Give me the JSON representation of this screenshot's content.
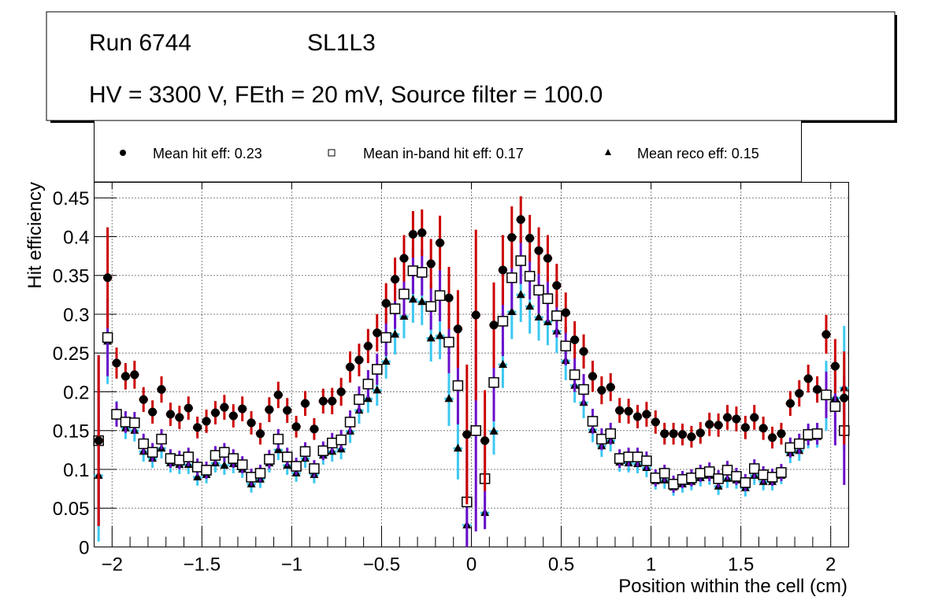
{
  "header": {
    "line1_run": "Run 6744",
    "line1_layer": "SL1L3",
    "line2": "HV = 3300 V, FEth = 20 mV, Source filter = 100.0"
  },
  "legend": {
    "entries": [
      {
        "marker": "filled-circle",
        "label": "Mean hit  eff: 0.23"
      },
      {
        "marker": "open-square",
        "label": "Mean in-band hit eff: 0.17"
      },
      {
        "marker": "filled-triangle",
        "label": "Mean reco eff: 0.15"
      }
    ]
  },
  "chart_data": {
    "type": "scatter",
    "title": "",
    "xlabel": "Position within the cell (cm)",
    "ylabel": "Hit efficiency",
    "xlim": [
      -2.1,
      2.1
    ],
    "ylim": [
      0,
      0.47
    ],
    "grid": true,
    "legend_position": "top",
    "x_ticks": [
      -2,
      -1.5,
      -1,
      -0.5,
      0,
      0.5,
      1,
      1.5,
      2
    ],
    "x_tick_labels": [
      "−2",
      "−1.5",
      "−1",
      "−0.5",
      "0",
      "0.5",
      "1",
      "1.5",
      "2"
    ],
    "y_ticks": [
      0,
      0.05,
      0.1,
      0.15,
      0.2,
      0.25,
      0.3,
      0.35,
      0.4,
      0.45
    ],
    "y_tick_labels": [
      "0",
      "0.05",
      "0.1",
      "0.15",
      "0.2",
      "0.25",
      "0.3",
      "0.35",
      "0.4",
      "0.45"
    ],
    "x": [
      -2.075,
      -2.025,
      -1.975,
      -1.925,
      -1.875,
      -1.825,
      -1.775,
      -1.725,
      -1.675,
      -1.625,
      -1.575,
      -1.525,
      -1.475,
      -1.425,
      -1.375,
      -1.325,
      -1.275,
      -1.225,
      -1.175,
      -1.125,
      -1.075,
      -1.025,
      -0.975,
      -0.925,
      -0.875,
      -0.825,
      -0.775,
      -0.725,
      -0.675,
      -0.625,
      -0.575,
      -0.525,
      -0.475,
      -0.425,
      -0.375,
      -0.325,
      -0.275,
      -0.225,
      -0.175,
      -0.125,
      -0.075,
      -0.025,
      0.025,
      0.075,
      0.125,
      0.175,
      0.225,
      0.275,
      0.325,
      0.375,
      0.425,
      0.475,
      0.525,
      0.575,
      0.625,
      0.675,
      0.725,
      0.775,
      0.825,
      0.875,
      0.925,
      0.975,
      1.025,
      1.075,
      1.125,
      1.175,
      1.225,
      1.275,
      1.325,
      1.375,
      1.425,
      1.475,
      1.525,
      1.575,
      1.625,
      1.675,
      1.725,
      1.775,
      1.825,
      1.875,
      1.925,
      1.975,
      2.025,
      2.075
    ],
    "series": [
      {
        "name": "Mean hit  eff: 0.23",
        "marker": "filled-circle",
        "marker_color": "#000000",
        "error_color": "#cc0000",
        "values": [
          0.137,
          0.347,
          0.237,
          0.22,
          0.222,
          0.19,
          0.174,
          0.203,
          0.171,
          0.167,
          0.179,
          0.154,
          0.162,
          0.173,
          0.18,
          0.169,
          0.178,
          0.16,
          0.146,
          0.177,
          0.196,
          0.176,
          0.155,
          0.185,
          0.152,
          0.188,
          0.188,
          0.2,
          0.232,
          0.241,
          0.259,
          0.276,
          0.314,
          0.345,
          0.372,
          0.403,
          0.405,
          0.365,
          0.392,
          0.321,
          0.281,
          0.145,
          0.299,
          0.137,
          0.286,
          0.357,
          0.399,
          0.422,
          0.398,
          0.382,
          0.372,
          0.337,
          0.302,
          0.267,
          0.252,
          0.22,
          0.202,
          0.206,
          0.176,
          0.175,
          0.168,
          0.171,
          0.161,
          0.146,
          0.146,
          0.145,
          0.142,
          0.147,
          0.158,
          0.157,
          0.167,
          0.165,
          0.154,
          0.167,
          0.153,
          0.141,
          0.146,
          0.185,
          0.198,
          0.217,
          0.203,
          0.274,
          0.233,
          0.192
        ],
        "errors": [
          0.11,
          0.065,
          0.02,
          0.017,
          0.018,
          0.016,
          0.015,
          0.017,
          0.015,
          0.015,
          0.015,
          0.014,
          0.015,
          0.015,
          0.016,
          0.015,
          0.016,
          0.015,
          0.014,
          0.016,
          0.017,
          0.016,
          0.014,
          0.016,
          0.014,
          0.016,
          0.017,
          0.018,
          0.02,
          0.021,
          0.022,
          0.024,
          0.026,
          0.028,
          0.03,
          0.03,
          0.03,
          0.032,
          0.035,
          0.04,
          0.05,
          0.09,
          0.11,
          0.065,
          0.055,
          0.045,
          0.04,
          0.03,
          0.03,
          0.03,
          0.03,
          0.028,
          0.026,
          0.024,
          0.022,
          0.02,
          0.018,
          0.018,
          0.016,
          0.016,
          0.015,
          0.016,
          0.015,
          0.014,
          0.014,
          0.014,
          0.014,
          0.014,
          0.015,
          0.015,
          0.016,
          0.016,
          0.015,
          0.016,
          0.015,
          0.014,
          0.014,
          0.016,
          0.017,
          0.018,
          0.017,
          0.025,
          0.035,
          0.06
        ]
      },
      {
        "name": "Mean in-band hit eff: 0.17",
        "marker": "open-square",
        "marker_color": "#000000",
        "error_color": "#6a0dca",
        "values": [
          0.137,
          0.27,
          0.171,
          0.161,
          0.16,
          0.133,
          0.122,
          0.139,
          0.114,
          0.112,
          0.116,
          0.103,
          0.099,
          0.118,
          0.122,
          0.114,
          0.106,
          0.09,
          0.095,
          0.113,
          0.139,
          0.116,
          0.104,
          0.123,
          0.101,
          0.124,
          0.134,
          0.138,
          0.161,
          0.19,
          0.21,
          0.229,
          0.27,
          0.307,
          0.326,
          0.356,
          0.354,
          0.31,
          0.324,
          0.264,
          0.208,
          0.058,
          0.15,
          0.088,
          0.212,
          0.291,
          0.347,
          0.369,
          0.349,
          0.331,
          0.32,
          0.298,
          0.259,
          0.222,
          0.203,
          0.162,
          0.139,
          0.146,
          0.114,
          0.116,
          0.116,
          0.111,
          0.089,
          0.095,
          0.081,
          0.087,
          0.089,
          0.095,
          0.097,
          0.088,
          0.099,
          0.091,
          0.083,
          0.101,
          0.093,
          0.09,
          0.096,
          0.128,
          0.133,
          0.145,
          0.146,
          0.196,
          0.181,
          0.15
        ],
        "errors": [
          0.11,
          0.05,
          0.016,
          0.014,
          0.014,
          0.013,
          0.012,
          0.013,
          0.012,
          0.012,
          0.012,
          0.011,
          0.011,
          0.012,
          0.012,
          0.012,
          0.011,
          0.011,
          0.011,
          0.012,
          0.013,
          0.012,
          0.011,
          0.012,
          0.011,
          0.012,
          0.013,
          0.013,
          0.015,
          0.017,
          0.018,
          0.02,
          0.024,
          0.026,
          0.028,
          0.03,
          0.03,
          0.03,
          0.033,
          0.04,
          0.05,
          0.09,
          0.13,
          0.065,
          0.05,
          0.045,
          0.04,
          0.03,
          0.03,
          0.03,
          0.03,
          0.028,
          0.025,
          0.022,
          0.02,
          0.016,
          0.014,
          0.014,
          0.012,
          0.012,
          0.012,
          0.012,
          0.011,
          0.011,
          0.011,
          0.011,
          0.011,
          0.011,
          0.012,
          0.011,
          0.012,
          0.011,
          0.011,
          0.012,
          0.011,
          0.011,
          0.011,
          0.013,
          0.013,
          0.014,
          0.014,
          0.03,
          0.05,
          0.07
        ]
      },
      {
        "name": "Mean reco eff: 0.15",
        "marker": "filled-triangle",
        "marker_color": "#000000",
        "error_color": "#3cc8f0",
        "values": [
          0.092,
          0.265,
          0.172,
          0.153,
          0.15,
          0.123,
          0.114,
          0.127,
          0.108,
          0.106,
          0.106,
          0.09,
          0.093,
          0.108,
          0.105,
          0.107,
          0.1,
          0.081,
          0.087,
          0.108,
          0.125,
          0.105,
          0.095,
          0.114,
          0.093,
          0.118,
          0.123,
          0.126,
          0.149,
          0.176,
          0.191,
          0.202,
          0.239,
          0.274,
          0.297,
          0.319,
          0.316,
          0.269,
          0.272,
          0.191,
          0.127,
          0.028,
          null,
          0.044,
          0.149,
          0.235,
          0.303,
          0.325,
          0.31,
          0.296,
          0.29,
          0.278,
          0.24,
          0.208,
          0.186,
          0.151,
          0.13,
          0.137,
          0.109,
          0.108,
          0.107,
          0.102,
          0.085,
          0.086,
          0.077,
          0.081,
          0.084,
          0.089,
          0.092,
          0.078,
          0.088,
          0.086,
          0.076,
          0.092,
          0.084,
          0.084,
          0.092,
          0.121,
          0.124,
          0.141,
          0.142,
          0.195,
          0.192,
          0.205
        ],
        "errors": [
          0.085,
          0.055,
          0.016,
          0.014,
          0.014,
          0.013,
          0.012,
          0.013,
          0.012,
          0.012,
          0.012,
          0.011,
          0.011,
          0.012,
          0.012,
          0.012,
          0.011,
          0.011,
          0.011,
          0.012,
          0.013,
          0.012,
          0.011,
          0.012,
          0.011,
          0.012,
          0.013,
          0.013,
          0.015,
          0.017,
          0.018,
          0.02,
          0.022,
          0.026,
          0.028,
          0.03,
          0.03,
          0.03,
          0.03,
          0.035,
          0.04,
          0.025,
          null,
          0.02,
          0.03,
          0.03,
          0.035,
          0.035,
          0.035,
          0.03,
          0.03,
          0.028,
          0.025,
          0.022,
          0.02,
          0.016,
          0.014,
          0.014,
          0.012,
          0.012,
          0.012,
          0.012,
          0.011,
          0.011,
          0.011,
          0.011,
          0.011,
          0.011,
          0.012,
          0.011,
          0.012,
          0.011,
          0.011,
          0.012,
          0.011,
          0.011,
          0.011,
          0.013,
          0.013,
          0.014,
          0.014,
          0.045,
          0.05,
          0.08
        ]
      }
    ]
  }
}
